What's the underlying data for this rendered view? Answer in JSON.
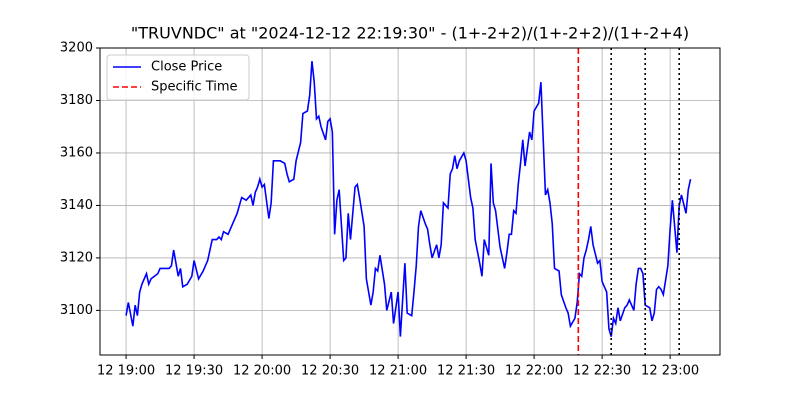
{
  "chart_data": {
    "type": "line",
    "title": "\"TRUVNDC\" at \"2024-12-12 22:19:30\" - (1+-2+2)/(1+-2+2)/(1+-2+4)",
    "x": [
      "12 19:00",
      "12 19:01",
      "12 19:03",
      "12 19:04",
      "12 19:05",
      "12 19:06",
      "12 19:07",
      "12 19:09",
      "12 19:10",
      "12 19:11",
      "12 19:14",
      "12 19:15",
      "12 19:19",
      "12 19:20",
      "12 19:21",
      "12 19:23",
      "12 19:24",
      "12 19:25",
      "12 19:27",
      "12 19:29",
      "12 19:30",
      "12 19:32",
      "12 19:34",
      "12 19:36",
      "12 19:38",
      "12 19:40",
      "12 19:41",
      "12 19:42",
      "12 19:43",
      "12 19:45",
      "12 19:47",
      "12 19:49",
      "12 19:50",
      "12 19:51",
      "12 19:53",
      "12 19:55",
      "12 19:56",
      "12 19:57",
      "12 19:58",
      "12 19:59",
      "12 20:00",
      "12 20:01",
      "12 20:03",
      "12 20:04",
      "12 20:05",
      "12 20:08",
      "12 20:10",
      "12 20:11",
      "12 20:12",
      "12 20:14",
      "12 20:15",
      "12 20:17",
      "12 20:18",
      "12 20:20",
      "12 20:21",
      "12 20:22",
      "12 20:23",
      "12 20:24",
      "12 20:25",
      "12 20:26",
      "12 20:28",
      "12 20:29",
      "12 20:30",
      "12 20:31",
      "12 20:32",
      "12 20:33",
      "12 20:34",
      "12 20:36",
      "12 20:37",
      "12 20:38",
      "12 20:39",
      "12 20:41",
      "12 20:42",
      "12 20:43",
      "12 20:45",
      "12 20:46",
      "12 20:48",
      "12 20:49",
      "12 20:50",
      "12 20:51",
      "12 20:52",
      "12 20:54",
      "12 20:55",
      "12 20:57",
      "12 20:58",
      "12 21:00",
      "12 21:01",
      "12 21:03",
      "12 21:04",
      "12 21:06",
      "12 21:07",
      "12 21:08",
      "12 21:09",
      "12 21:10",
      "12 21:12",
      "12 21:13",
      "12 21:14",
      "12 21:15",
      "12 21:17",
      "12 21:18",
      "12 21:19",
      "12 21:20",
      "12 21:22",
      "12 21:23",
      "12 21:24",
      "12 21:25",
      "12 21:26",
      "12 21:27",
      "12 21:29",
      "12 21:30",
      "12 21:32",
      "12 21:33",
      "12 21:34",
      "12 21:36",
      "12 21:37",
      "12 21:38",
      "12 21:40",
      "12 21:41",
      "12 21:42",
      "12 21:43",
      "12 21:44",
      "12 21:45",
      "12 21:47",
      "12 21:48",
      "12 21:49",
      "12 21:50",
      "12 21:51",
      "12 21:52",
      "12 21:53",
      "12 21:54",
      "12 21:55",
      "12 21:56",
      "12 21:58",
      "12 21:59",
      "12 22:00",
      "12 22:02",
      "12 22:03",
      "12 22:05",
      "12 22:06",
      "12 22:07",
      "12 22:08",
      "12 22:09",
      "12 22:11",
      "12 22:12",
      "12 22:14",
      "12 22:15",
      "12 22:16",
      "12 22:18",
      "12 22:19",
      "12 22:20",
      "12 22:21",
      "12 22:22",
      "12 22:23",
      "12 22:24",
      "12 22:25",
      "12 22:26",
      "12 22:28",
      "12 22:29",
      "12 22:30",
      "12 22:32",
      "12 22:33",
      "12 22:34",
      "12 22:35",
      "12 22:36",
      "12 22:37",
      "12 22:38",
      "12 22:40",
      "12 22:41",
      "12 22:42",
      "12 22:44",
      "12 22:45",
      "12 22:46",
      "12 22:47",
      "12 22:48",
      "12 22:49",
      "12 22:51",
      "12 22:52",
      "12 22:53",
      "12 22:54",
      "12 22:55",
      "12 22:56",
      "12 22:57",
      "12 22:59",
      "12 23:00",
      "12 23:01",
      "12 23:03",
      "12 23:04",
      "12 23:05",
      "12 23:07",
      "12 23:08",
      "12 23:09"
    ],
    "series": [
      {
        "name": "Close Price",
        "color": "#0000ff",
        "values": [
          3098,
          3103,
          3094,
          3102,
          3098,
          3107,
          3110,
          3114,
          3110,
          3112,
          3114,
          3116,
          3116,
          3117,
          3123,
          3113,
          3116,
          3109,
          3110,
          3113,
          3119,
          3112,
          3115,
          3119,
          3127,
          3127,
          3128,
          3127,
          3130,
          3129,
          3133,
          3137,
          3140,
          3143,
          3142,
          3144,
          3140,
          3145,
          3147,
          3150,
          3147,
          3148,
          3135,
          3141,
          3157,
          3157,
          3156,
          3152,
          3149,
          3150,
          3157,
          3164,
          3175,
          3176,
          3182,
          3195,
          3187,
          3173,
          3174,
          3170,
          3165,
          3172,
          3173,
          3168,
          3129,
          3142,
          3146,
          3119,
          3120,
          3137,
          3127,
          3147,
          3148,
          3143,
          3132,
          3112,
          3102,
          3107,
          3116,
          3115,
          3121,
          3110,
          3100,
          3107,
          3095,
          3107,
          3090,
          3118,
          3099,
          3098,
          3107,
          3117,
          3132,
          3138,
          3133,
          3131,
          3125,
          3120,
          3125,
          3120,
          3125,
          3141,
          3139,
          3152,
          3154,
          3159,
          3154,
          3157,
          3160,
          3157,
          3143,
          3139,
          3127,
          3118,
          3113,
          3127,
          3121,
          3156,
          3141,
          3138,
          3131,
          3124,
          3116,
          3122,
          3129,
          3129,
          3138,
          3137,
          3148,
          3156,
          3165,
          3155,
          3168,
          3165,
          3176,
          3179,
          3187,
          3144,
          3146,
          3141,
          3133,
          3116,
          3115,
          3106,
          3101,
          3099,
          3094,
          3097,
          3103,
          3114,
          3113,
          3120,
          3123,
          3127,
          3132,
          3125,
          3118,
          3119,
          3111,
          3107,
          3093,
          3090,
          3097,
          3095,
          3101,
          3096,
          3101,
          3102,
          3104,
          3100,
          3110,
          3116,
          3116,
          3114,
          3102,
          3101,
          3096,
          3099,
          3108,
          3109,
          3108,
          3106,
          3117,
          3131,
          3142,
          3122,
          3140,
          3144,
          3137,
          3146,
          3150
        ]
      }
    ],
    "vlines": [
      {
        "name": "Specific Time",
        "color": "#ff0000",
        "style": "dashed",
        "x": "12 22:19:30"
      }
    ],
    "dotted_lines": {
      "color": "#000000",
      "x": [
        "12 22:34",
        "12 22:49",
        "12 23:04"
      ]
    },
    "xlim": [
      "12 18:48:30",
      "12 23:22"
    ],
    "xticks": [
      "12 19:00",
      "12 19:30",
      "12 20:00",
      "12 20:30",
      "12 21:00",
      "12 21:30",
      "12 22:00",
      "12 22:30",
      "12 23:00"
    ],
    "ylim": [
      3083,
      3200
    ],
    "yticks": [
      3100,
      3120,
      3140,
      3160,
      3180,
      3200
    ],
    "grid": true,
    "legend": "upper left"
  }
}
